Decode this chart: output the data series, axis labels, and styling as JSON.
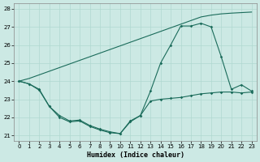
{
  "xlabel": "Humidex (Indice chaleur)",
  "bg_color": "#cce9e4",
  "line_color": "#1a6b5a",
  "grid_color": "#b0d8d0",
  "ylim": [
    20.7,
    28.3
  ],
  "xlim": [
    -0.5,
    23.5
  ],
  "yticks": [
    21,
    22,
    23,
    24,
    25,
    26,
    27,
    28
  ],
  "xticks": [
    0,
    1,
    2,
    3,
    4,
    5,
    6,
    7,
    8,
    9,
    10,
    11,
    12,
    13,
    14,
    15,
    16,
    17,
    18,
    19,
    20,
    21,
    22,
    23
  ],
  "line1_x": [
    0,
    1,
    2,
    3,
    4,
    5,
    6,
    7,
    8,
    9,
    10,
    11,
    12,
    13,
    14,
    15,
    16,
    17,
    18,
    19,
    20,
    21,
    22,
    23
  ],
  "line1_y": [
    24.0,
    23.85,
    23.55,
    22.6,
    22.1,
    21.8,
    21.85,
    21.55,
    21.35,
    21.2,
    21.1,
    21.8,
    22.1,
    22.9,
    23.0,
    23.05,
    23.1,
    23.2,
    23.3,
    23.35,
    23.4,
    23.4,
    23.35,
    23.4
  ],
  "line2_x": [
    0,
    1,
    2,
    3,
    4,
    5,
    6,
    7,
    8,
    9,
    10,
    11,
    12,
    13,
    14,
    15,
    16,
    17,
    18,
    19,
    20,
    21,
    22,
    23
  ],
  "line2_y": [
    24.0,
    24.15,
    24.35,
    24.55,
    24.75,
    24.95,
    25.15,
    25.35,
    25.55,
    25.75,
    25.95,
    26.15,
    26.35,
    26.55,
    26.75,
    26.95,
    27.15,
    27.35,
    27.55,
    27.65,
    27.72,
    27.76,
    27.79,
    27.82
  ],
  "line3_x": [
    0,
    1,
    2,
    3,
    4,
    5,
    6,
    7,
    8,
    9,
    10,
    11,
    12,
    13,
    14,
    15,
    16,
    17,
    18,
    19,
    20,
    21,
    22,
    23
  ],
  "line3_y": [
    24.0,
    23.85,
    23.5,
    22.6,
    22.0,
    21.75,
    21.8,
    21.5,
    21.3,
    21.15,
    21.1,
    21.75,
    22.1,
    23.45,
    25.0,
    26.0,
    27.05,
    27.05,
    27.2,
    27.0,
    25.35,
    23.55,
    23.8,
    23.45
  ],
  "line1_markers": true,
  "line2_markers": false,
  "line3_markers": true
}
